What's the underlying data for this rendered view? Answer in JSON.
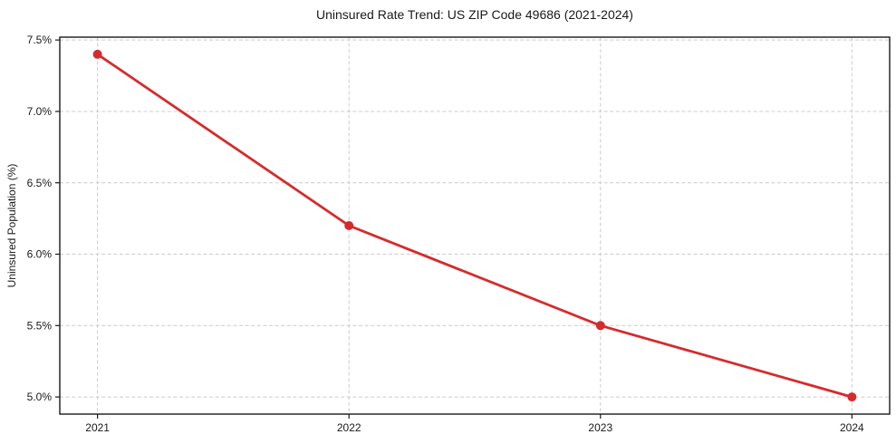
{
  "chart_data": {
    "type": "line",
    "title": "Uninsured Rate Trend: US ZIP Code 49686 (2021-2024)",
    "xlabel": "",
    "ylabel": "Uninsured Population (%)",
    "x": [
      2021,
      2022,
      2023,
      2024
    ],
    "values": [
      7.4,
      6.2,
      5.5,
      5.0
    ],
    "xlim": [
      2020.85,
      2024.15
    ],
    "ylim": [
      4.88,
      7.52
    ],
    "xticks": {
      "values": [
        2021,
        2022,
        2023,
        2024
      ],
      "labels": [
        "2021",
        "2022",
        "2023",
        "2024"
      ]
    },
    "yticks": {
      "values": [
        5.0,
        5.5,
        6.0,
        6.5,
        7.0,
        7.5
      ],
      "labels": [
        "5.0%",
        "5.5%",
        "6.0%",
        "6.5%",
        "7.0%",
        "7.5%"
      ]
    },
    "grid": true,
    "grid_style": "dashed",
    "legend": false,
    "colors": {
      "line": "#d62b2b",
      "marker": "#d62b2b",
      "grid": "#cccccc",
      "axes": "#1a1a1a",
      "text": "#1a1a1a",
      "background": "#ffffff"
    }
  }
}
